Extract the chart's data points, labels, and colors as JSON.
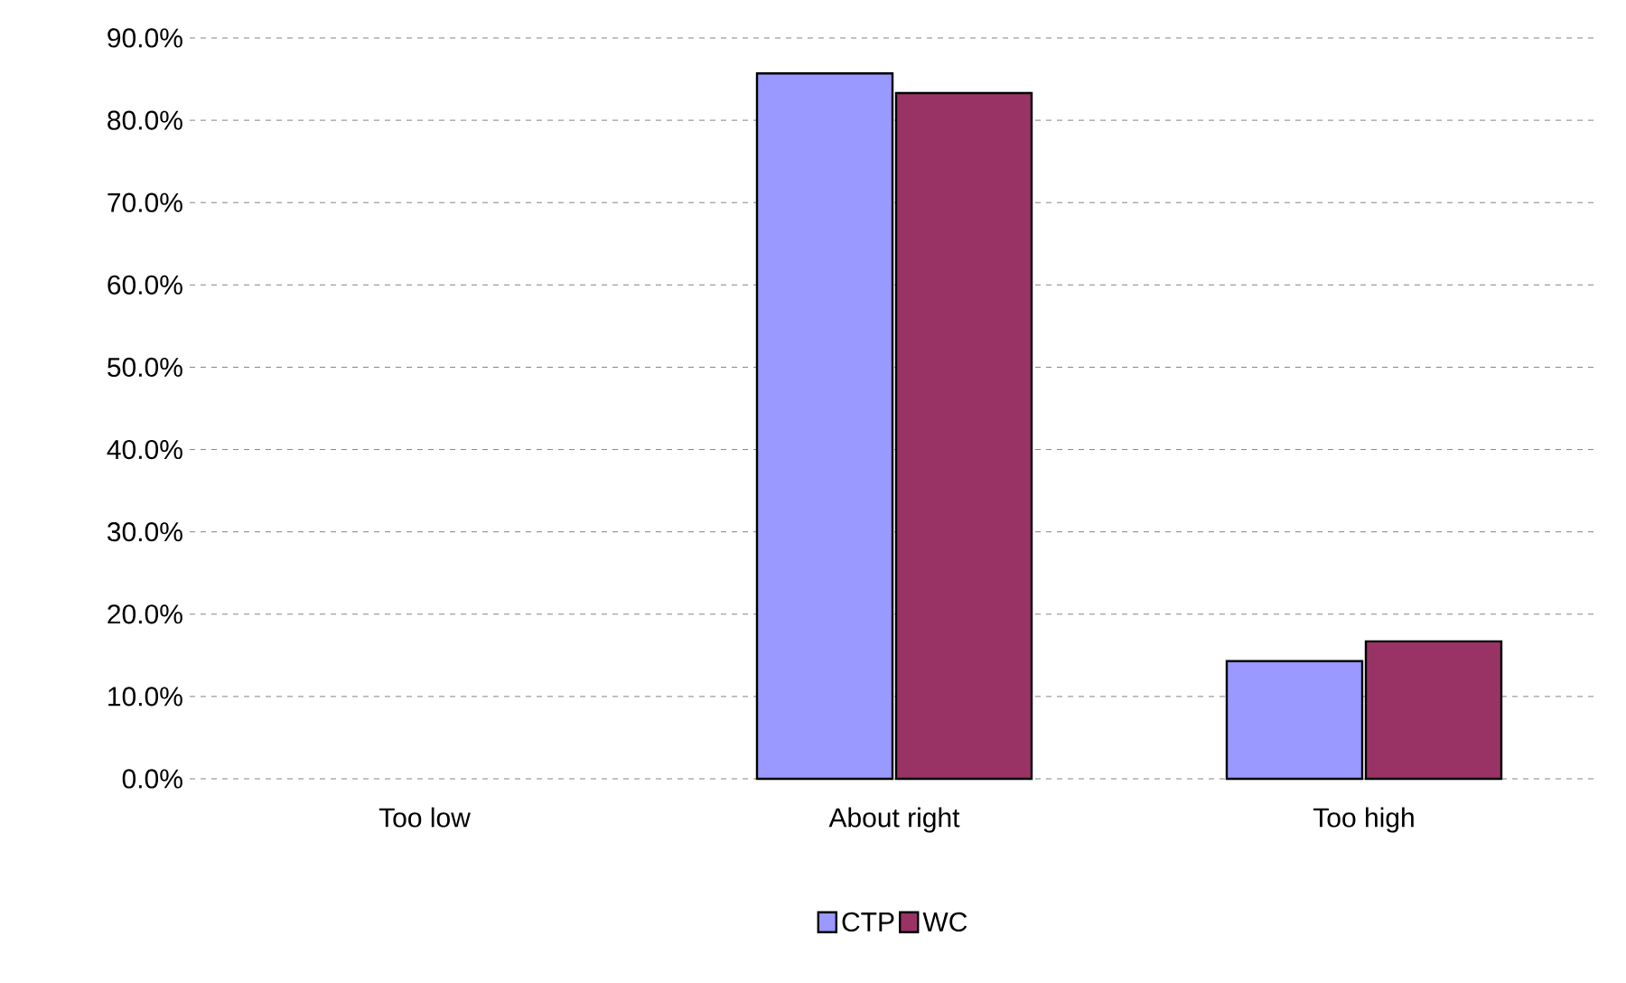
{
  "chart_data": {
    "type": "bar",
    "categories": [
      "Too low",
      "About right",
      "Too high"
    ],
    "series": [
      {
        "name": "CTP",
        "color": "#9999ff",
        "values": [
          null,
          85.7,
          14.3
        ]
      },
      {
        "name": "WC",
        "color": "#993366",
        "values": [
          null,
          83.3,
          16.7
        ]
      }
    ],
    "ylim": [
      0,
      90
    ],
    "yticks": [
      {
        "value": 0,
        "label": "0.0%"
      },
      {
        "value": 10,
        "label": "10.0%"
      },
      {
        "value": 20,
        "label": "20.0%"
      },
      {
        "value": 30,
        "label": "30.0%"
      },
      {
        "value": 40,
        "label": "40.0%"
      },
      {
        "value": 50,
        "label": "50.0%"
      },
      {
        "value": 60,
        "label": "60.0%"
      },
      {
        "value": 70,
        "label": "70.0%"
      },
      {
        "value": 80,
        "label": "80.0%"
      },
      {
        "value": 90,
        "label": "90.0%"
      }
    ],
    "grid": "y",
    "legend": "bottom"
  }
}
